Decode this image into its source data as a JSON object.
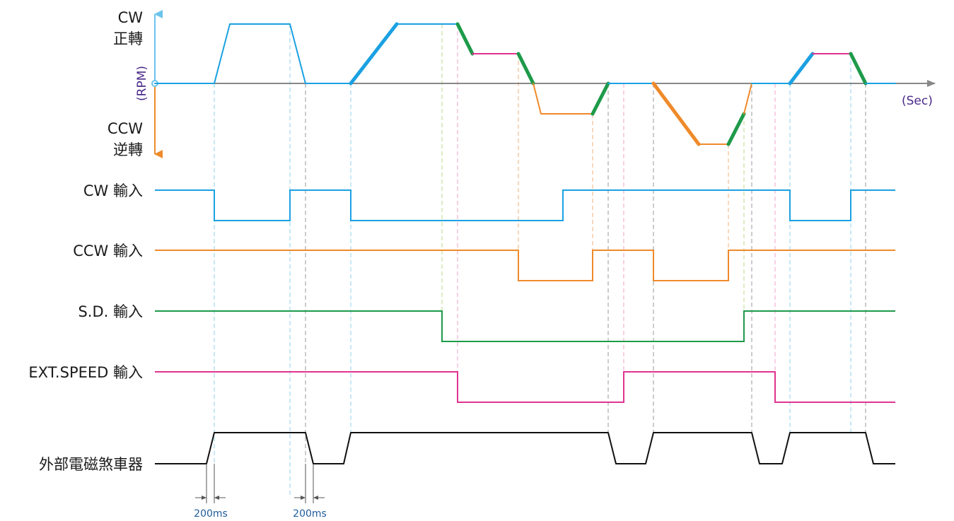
{
  "speed_axis": {
    "cw_label": "CW",
    "cw_sub": "正轉",
    "ccw_label": "CCW",
    "ccw_sub": "逆轉",
    "rpm_label": "(RPM)",
    "sec_label": "(Sec)"
  },
  "signals": {
    "cw": "CW 輸入",
    "ccw": "CCW 輸入",
    "sd": "S.D. 輸入",
    "ext": "EXT.SPEED 輸入",
    "brake": "外部電磁煞車器"
  },
  "timing": {
    "delay1": "200ms",
    "delay2": "200ms"
  },
  "colors": {
    "cw": "#1ba1e2",
    "ccw": "#ef8a2a",
    "sd": "#1e9a4a",
    "ext": "#e0338f",
    "brake": "#111111",
    "axis": "#888888",
    "arrow_up": "#6bc4ec",
    "arrow_down": "#ef8a2a",
    "units": "#4a2a8a"
  }
}
